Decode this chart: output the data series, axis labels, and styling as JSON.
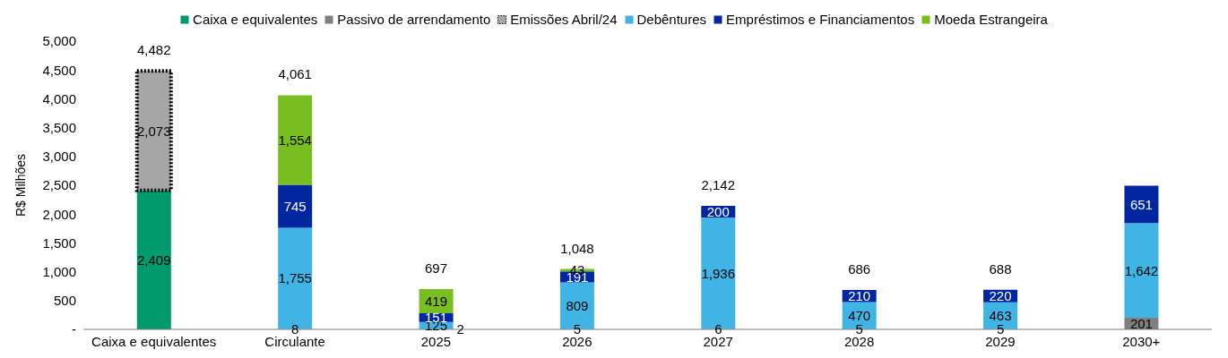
{
  "chart_data": {
    "type": "bar",
    "stacked": true,
    "ylabel": "R$ Milhões",
    "legend": "top",
    "categories": [
      "Caixa e equivalentes",
      "Circulante",
      "2025",
      "2026",
      "2027",
      "2028",
      "2029",
      "2030+"
    ],
    "series": [
      {
        "name": "Caixa e equivalentes",
        "color": "#009a6e",
        "values": [
          2409,
          null,
          null,
          null,
          null,
          null,
          null,
          null
        ],
        "value_labels": [
          "2,409",
          null,
          null,
          null,
          null,
          null,
          null,
          null
        ]
      },
      {
        "name": "Passivo de arrendamento",
        "color": "#7f7f7f",
        "values": [
          null,
          8,
          2,
          5,
          6,
          5,
          5,
          201
        ],
        "value_labels": [
          null,
          "8",
          "2",
          "5",
          "6",
          "5",
          "5",
          "201"
        ]
      },
      {
        "name": "Emissões Abril/24",
        "color": "#a6a6a6",
        "line_style": "dotted",
        "values": [
          2073,
          null,
          null,
          null,
          null,
          null,
          null,
          null
        ],
        "value_labels": [
          "2,073",
          null,
          null,
          null,
          null,
          null,
          null,
          null
        ]
      },
      {
        "name": "Debêntures",
        "color": "#41b4e6",
        "values": [
          null,
          1755,
          125,
          809,
          1936,
          470,
          463,
          1642
        ],
        "value_labels": [
          null,
          "1,755",
          "125",
          "809",
          "1,936",
          "470",
          "463",
          "1,642"
        ]
      },
      {
        "name": "Empréstimos e Financiamentos",
        "color": "#0026a0",
        "values": [
          null,
          745,
          151,
          191,
          200,
          210,
          220,
          651
        ],
        "value_labels": [
          null,
          "745",
          "151",
          "191",
          "200",
          "210",
          "220",
          "651"
        ]
      },
      {
        "name": "Moeda Estrangeira",
        "color": "#78be20",
        "values": [
          null,
          1554,
          419,
          43,
          null,
          null,
          null,
          null
        ],
        "value_labels": [
          null,
          "1,554",
          "419",
          "43",
          null,
          null,
          null,
          null
        ]
      }
    ],
    "totals": [
      "4,482",
      "4,061",
      "697",
      "1,048",
      "2,142",
      "686",
      "688",
      null
    ],
    "ylim": [
      0,
      5000
    ],
    "yticks": [
      {
        "value": 0,
        "label": "-"
      },
      {
        "value": 500,
        "label": "500"
      },
      {
        "value": 1000,
        "label": "1,000"
      },
      {
        "value": 1500,
        "label": "1,500"
      },
      {
        "value": 2000,
        "label": "2,000"
      },
      {
        "value": 2500,
        "label": "2,500"
      },
      {
        "value": 3000,
        "label": "3,000"
      },
      {
        "value": 3500,
        "label": "3,500"
      },
      {
        "value": 4000,
        "label": "4,000"
      },
      {
        "value": 4500,
        "label": "4,500"
      },
      {
        "value": 5000,
        "label": "5,000"
      }
    ]
  }
}
